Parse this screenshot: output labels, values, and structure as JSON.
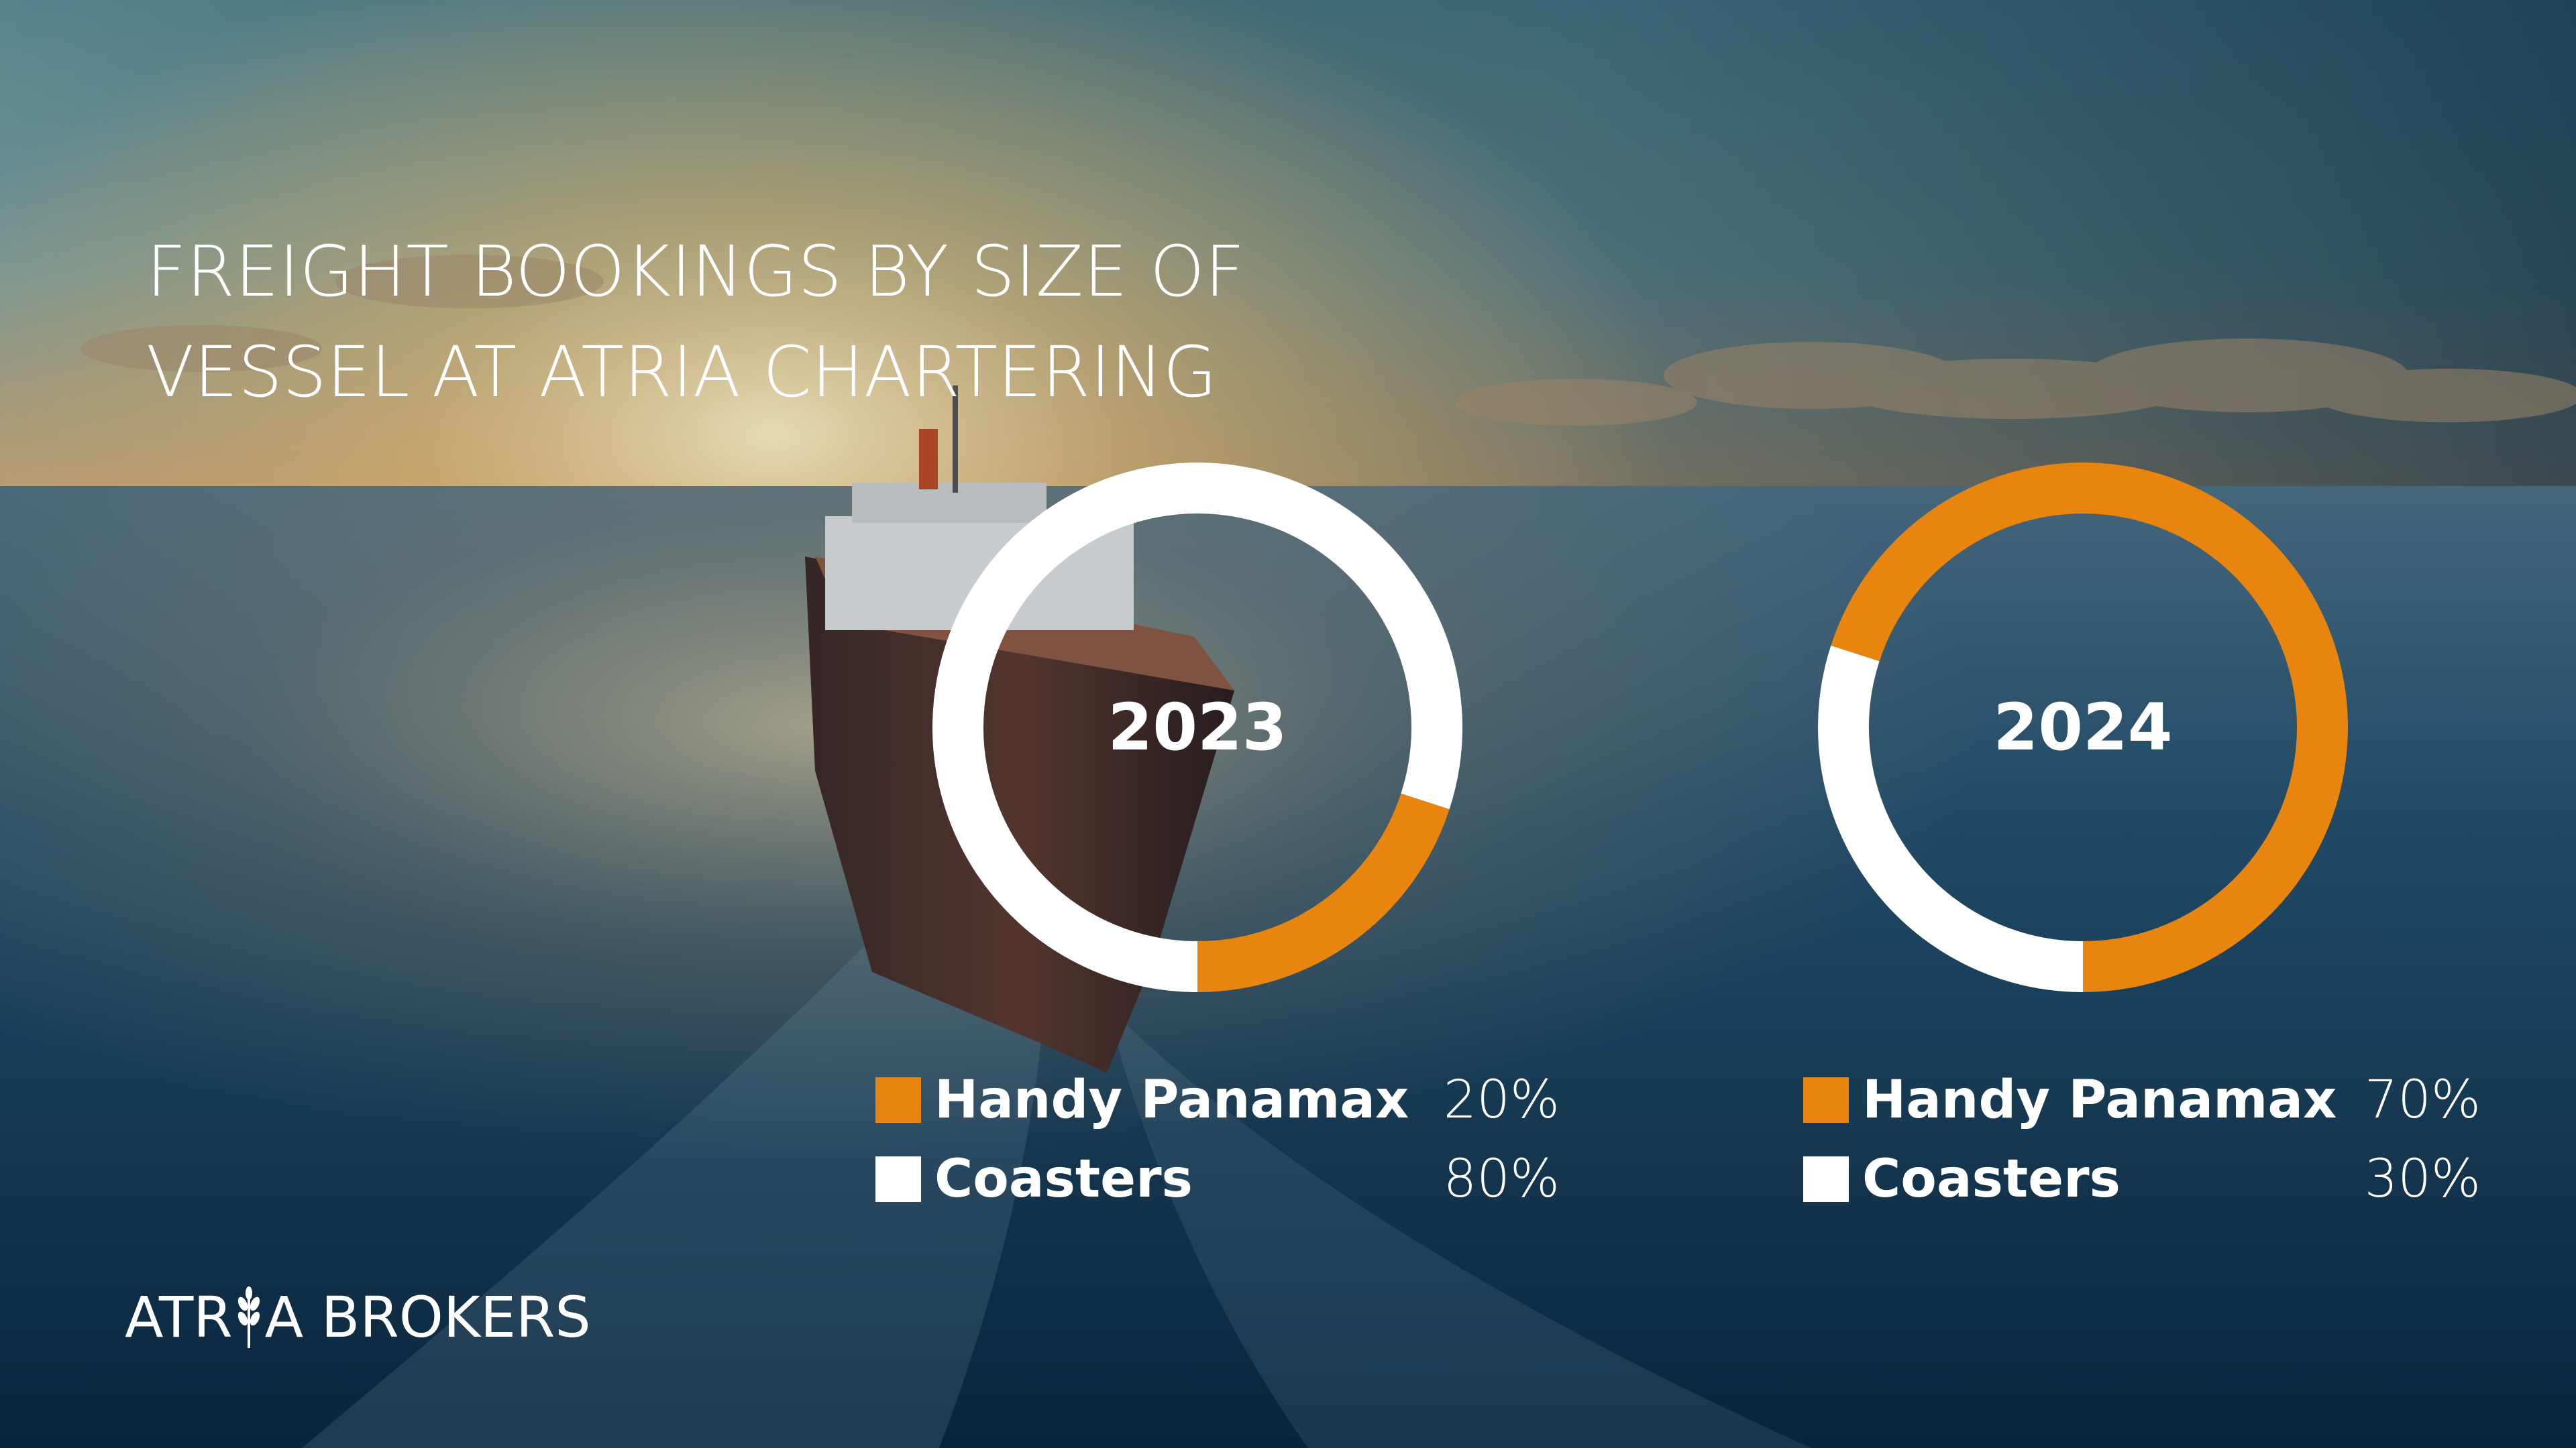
{
  "title": {
    "line1": "FREIGHT BOOKINGS BY SIZE OF",
    "line2": "VESSEL AT ATRIA CHARTERING"
  },
  "colors": {
    "handy_panamax": "#E8850E",
    "coasters": "#FFFFFF",
    "text": "#FFFFFF"
  },
  "chart_data": [
    {
      "type": "pie",
      "title": "2023",
      "style": "donut",
      "series": [
        {
          "name": "Handy Panamax",
          "value": 20,
          "label": "20%",
          "color": "#E8850E"
        },
        {
          "name": "Coasters",
          "value": 80,
          "label": "80%",
          "color": "#FFFFFF"
        }
      ]
    },
    {
      "type": "pie",
      "title": "2024",
      "style": "donut",
      "series": [
        {
          "name": "Handy Panamax",
          "value": 70,
          "label": "70%",
          "color": "#E8850E"
        },
        {
          "name": "Coasters",
          "value": 30,
          "label": "30%",
          "color": "#FFFFFF"
        }
      ]
    }
  ],
  "logo": {
    "left": "ATR",
    "right": "A BROKERS"
  }
}
